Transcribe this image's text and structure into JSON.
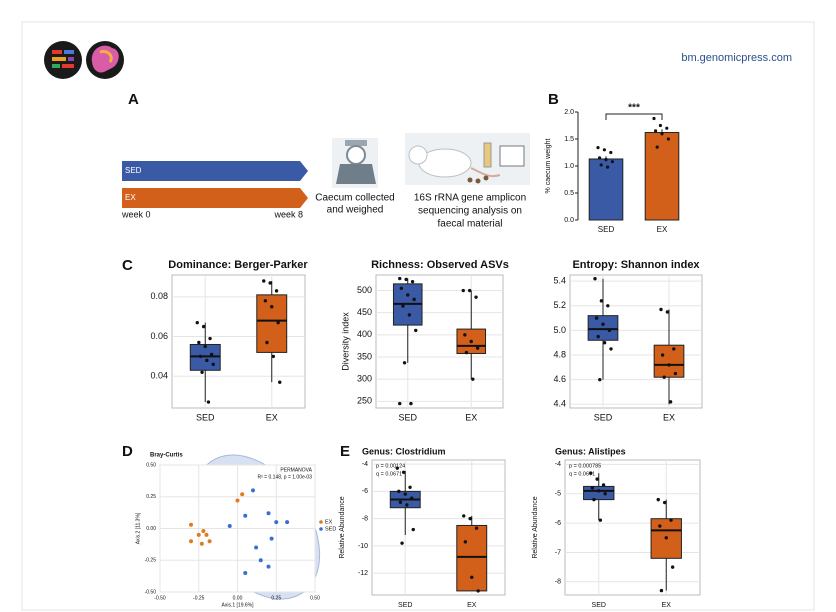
{
  "header": {
    "url": "bm.genomicpress.com"
  },
  "panel_labels": [
    "A",
    "B",
    "C",
    "D",
    "E"
  ],
  "timeline": {
    "groups": [
      "SED",
      "EX"
    ],
    "start": "week 0",
    "end": "week 8",
    "step1": [
      "Caecum collected",
      "and weighed"
    ],
    "step2": [
      "16S rRNA gene amplicon",
      "sequencing analysis on",
      "faecal material"
    ]
  },
  "chart_data": [
    {
      "type": "bar",
      "y_label": "% caecum weight",
      "categories": [
        "SED",
        "EX"
      ],
      "values": [
        1.13,
        1.62
      ],
      "errors": [
        0.05,
        0.06
      ],
      "colors": [
        "#3a5aa6",
        "#d2601a"
      ],
      "points": [
        [
          1.34,
          1.3,
          1.25,
          1.15,
          1.12,
          1.08,
          1.02,
          0.98
        ],
        [
          1.88,
          1.75,
          1.7,
          1.65,
          1.6,
          1.5,
          1.35
        ]
      ],
      "annotation": "***",
      "ylim": [
        0,
        2
      ],
      "yticks": [
        {
          "value": 0,
          "label": "0.0"
        },
        0.5,
        {
          "value": 1,
          "label": "1.0"
        },
        1.5,
        {
          "value": 2,
          "label": "2.0"
        }
      ]
    },
    {
      "type": "box",
      "title": "Dominance: Berger-Parker",
      "grid": true,
      "ylim": [
        0.024,
        0.091
      ],
      "yticks": [
        0.04,
        0.06,
        0.08
      ],
      "series": [
        {
          "name": "SED",
          "color": "#3a5aa6",
          "whisker_low": 0.027,
          "q1": 0.043,
          "median": 0.05,
          "q3": 0.056,
          "whisker_high": 0.067,
          "points": [
            0.067,
            0.065,
            0.059,
            0.057,
            0.055,
            0.051,
            0.05,
            0.048,
            0.046,
            0.042,
            0.027
          ]
        },
        {
          "name": "EX",
          "color": "#d2601a",
          "whisker_low": 0.037,
          "q1": 0.052,
          "median": 0.068,
          "q3": 0.081,
          "whisker_high": 0.088,
          "points": [
            0.088,
            0.087,
            0.083,
            0.078,
            0.075,
            0.067,
            0.057,
            0.05,
            0.037
          ]
        }
      ]
    },
    {
      "type": "box",
      "title": "Richness: Observed ASVs",
      "y_label": "Diversity index",
      "grid": true,
      "ylim": [
        235,
        535
      ],
      "yticks": [
        250,
        300,
        350,
        400,
        450,
        500
      ],
      "series": [
        {
          "name": "SED",
          "color": "#3a5aa6",
          "whisker_low": 337,
          "q1": 422,
          "median": 470,
          "q3": 515,
          "whisker_high": 527,
          "points": [
            527,
            525,
            520,
            505,
            490,
            480,
            465,
            445,
            410,
            337,
            245,
            245
          ]
        },
        {
          "name": "EX",
          "color": "#d2601a",
          "whisker_low": 300,
          "q1": 358,
          "median": 375,
          "q3": 413,
          "whisker_high": 500,
          "points": [
            500,
            500,
            485,
            400,
            385,
            370,
            360,
            300
          ]
        }
      ]
    },
    {
      "type": "box",
      "title": "Entropy: Shannon index",
      "grid": true,
      "ylim": [
        4.37,
        5.45
      ],
      "yticks": [
        4.4,
        4.6,
        4.8,
        {
          "value": 5,
          "label": "5.0"
        },
        5.2,
        5.4
      ],
      "series": [
        {
          "name": "SED",
          "color": "#3a5aa6",
          "whisker_low": 4.6,
          "q1": 4.92,
          "median": 5.01,
          "q3": 5.12,
          "whisker_high": 5.42,
          "points": [
            5.42,
            5.24,
            5.2,
            5.1,
            5.05,
            5,
            4.95,
            4.9,
            4.85,
            4.6
          ]
        },
        {
          "name": "EX",
          "color": "#d2601a",
          "whisker_low": 4.4,
          "q1": 4.62,
          "median": 4.72,
          "q3": 4.88,
          "whisker_high": 5.17,
          "points": [
            5.17,
            5.15,
            4.85,
            4.8,
            4.72,
            4.65,
            4.62,
            4.42
          ]
        }
      ]
    },
    {
      "type": "scatter",
      "title": "Bray-Curtis",
      "x_label": "Axis.1  [19.6%]",
      "y_label": "Axis.2  [11.3%]",
      "annotations": [
        "PERMANOVA",
        "R² = 0.148, p = 1.00e-03"
      ],
      "grid": true,
      "xlim": [
        -0.5,
        0.5
      ],
      "ylim": [
        -0.5,
        0.5
      ],
      "xticks": [
        {
          "value": -0.5,
          "label": "-0.50"
        },
        -0.25,
        {
          "value": 0,
          "label": "0.00"
        },
        0.25,
        {
          "value": 0.5,
          "label": "0.50"
        }
      ],
      "yticks": [
        {
          "value": -0.5,
          "label": "-0.50"
        },
        -0.25,
        {
          "value": 0,
          "label": "0.00"
        },
        0.25,
        {
          "value": 0.5,
          "label": "0.50"
        }
      ],
      "series": [
        {
          "name": "EX",
          "color": "#e07b20",
          "x": [
            -0.3,
            -0.25,
            -0.22,
            -0.2,
            -0.3,
            -0.23,
            -0.18,
            0,
            0.03
          ],
          "y": [
            0.03,
            -0.05,
            -0.02,
            -0.05,
            -0.1,
            -0.12,
            -0.1,
            0.22,
            0.27
          ]
        },
        {
          "name": "SED",
          "color": "#3a6fd0",
          "x": [
            -0.05,
            0.05,
            0.1,
            0.2,
            0.25,
            0.32,
            0.22,
            0.12,
            0.2,
            0.15,
            0.05
          ],
          "y": [
            0.02,
            0.1,
            0.3,
            0.12,
            0.05,
            0.05,
            -0.08,
            -0.15,
            -0.3,
            -0.25,
            -0.35
          ]
        }
      ]
    },
    {
      "type": "box",
      "title": "Genus: Clostridium",
      "annotations": [
        "p = 0.00124",
        "q = 0.0671"
      ],
      "y_label": "Relative Abundance",
      "grid": true,
      "ylim": [
        -13.6,
        -3.7
      ],
      "yticks": [
        -4,
        -6,
        -8,
        -10,
        -12
      ],
      "series": [
        {
          "name": "SED",
          "color": "#3a5aa6",
          "whisker_low": -9.2,
          "q1": -7.2,
          "median": -6.6,
          "q3": -6,
          "whisker_high": -4.5,
          "points": [
            -4.3,
            -4.6,
            -5.7,
            -6,
            -6.2,
            -6.5,
            -6.8,
            -7,
            -8.8,
            -9.8
          ]
        },
        {
          "name": "EX",
          "color": "#d2601a",
          "whisker_low": -13.3,
          "q1": -13.3,
          "median": -10.8,
          "q3": -8.5,
          "whisker_high": -7.8,
          "points": [
            -7.8,
            -8,
            -8.7,
            -9.7,
            -12.3,
            -13.3
          ]
        }
      ]
    },
    {
      "type": "box",
      "title": "Genus: Alistipes",
      "annotations": [
        "p = 0.000785",
        "q = 0.0671"
      ],
      "y_label": "Relative Abundance",
      "grid": true,
      "ylim": [
        -8.45,
        -3.85
      ],
      "yticks": [
        -4,
        -5,
        -6,
        -7,
        -8
      ],
      "series": [
        {
          "name": "SED",
          "color": "#3a5aa6",
          "whisker_low": -5.9,
          "q1": -5.2,
          "median": -4.9,
          "q3": -4.75,
          "whisker_high": -4.3,
          "points": [
            -4.3,
            -4.5,
            -4.7,
            -4.8,
            -4.9,
            -5,
            -5.2,
            -5.9
          ]
        },
        {
          "name": "EX",
          "color": "#d2601a",
          "whisker_low": -8.3,
          "q1": -7.2,
          "median": -6.25,
          "q3": -5.85,
          "whisker_high": -5.2,
          "points": [
            -5.2,
            -5.3,
            -5.9,
            -6.1,
            -6.5,
            -7.5,
            -8.3
          ]
        }
      ]
    }
  ]
}
